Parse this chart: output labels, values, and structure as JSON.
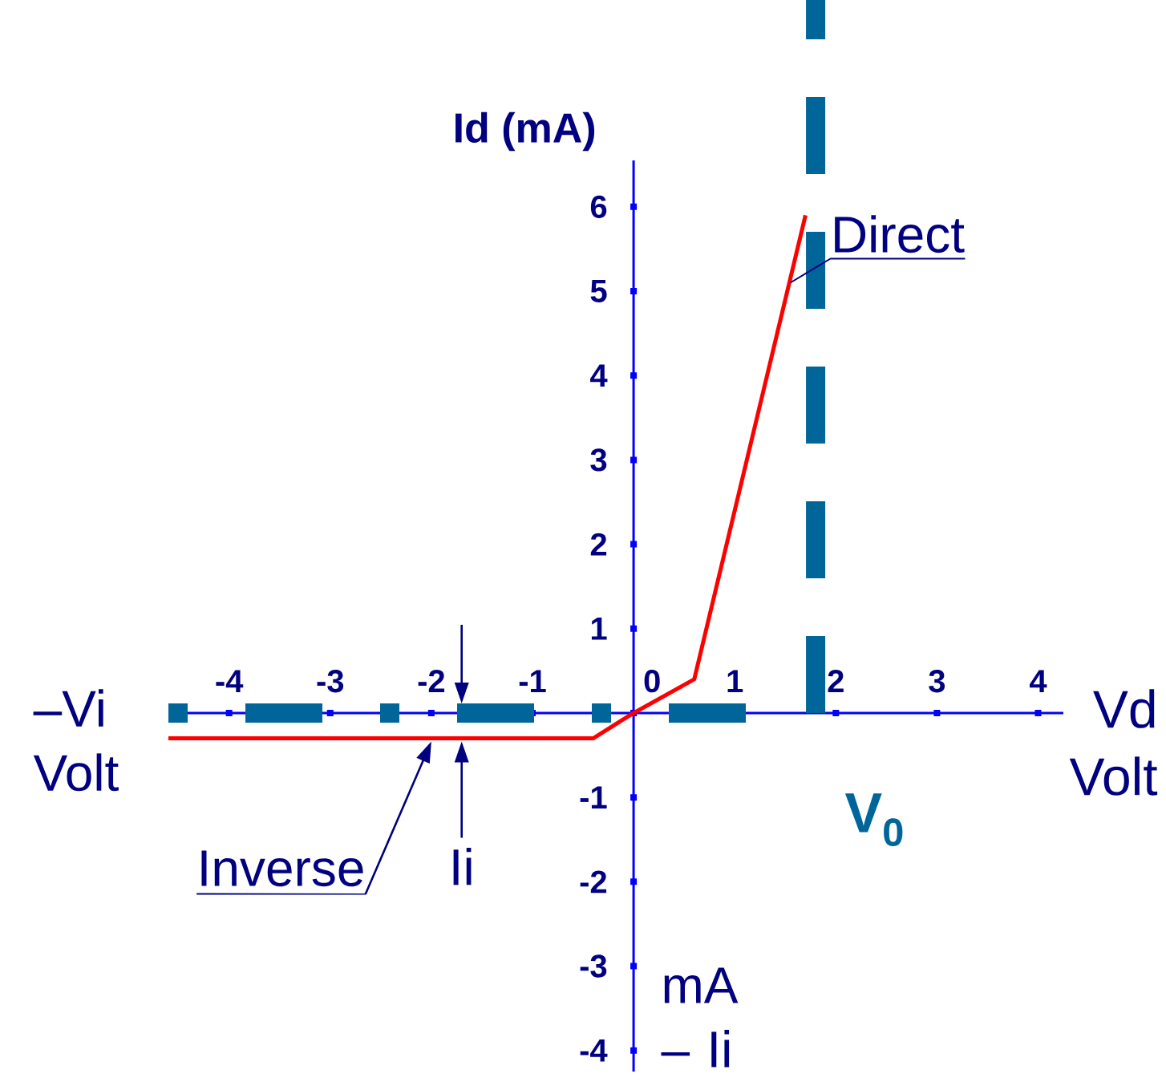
{
  "chart_data": {
    "type": "line",
    "xlabel": "Vd Volt",
    "ylabel": "Id (mA)",
    "xlim": [
      -4.6,
      4.25
    ],
    "ylim": [
      -4.25,
      6.55
    ],
    "xticks": [
      -4,
      -3,
      -2,
      -1,
      0,
      1,
      2,
      3,
      4
    ],
    "yticks": [
      -4,
      -3,
      -2,
      -1,
      1,
      2,
      3,
      4,
      5,
      6
    ],
    "marker": "none",
    "series": [
      {
        "color": "#ff0000",
        "x": [
          -4.6,
          -0.4,
          0,
          0.6,
          1.7
        ],
        "values": [
          -0.3,
          -0.3,
          0,
          0.4,
          5.9
        ]
      },
      {
        "color": "#006699",
        "line_style": "dashdot",
        "x": [
          -4.6,
          1.2
        ],
        "values": [
          0,
          0
        ]
      }
    ],
    "ref_lines": [
      {
        "axis": "x",
        "value": 1.8,
        "label": "V$_{0}$",
        "color": "#006699",
        "line_style": "dashed"
      }
    ],
    "annotations": [
      "–Vi Volt",
      "mA – Ii",
      {
        "text": "Direct",
        "x": 1.55,
        "y": 5.1
      },
      {
        "text": "Inverse",
        "x": -2,
        "y": -0.3
      },
      {
        "text": "Ii",
        "x": -1.7,
        "y": -0.3
      }
    ]
  }
}
